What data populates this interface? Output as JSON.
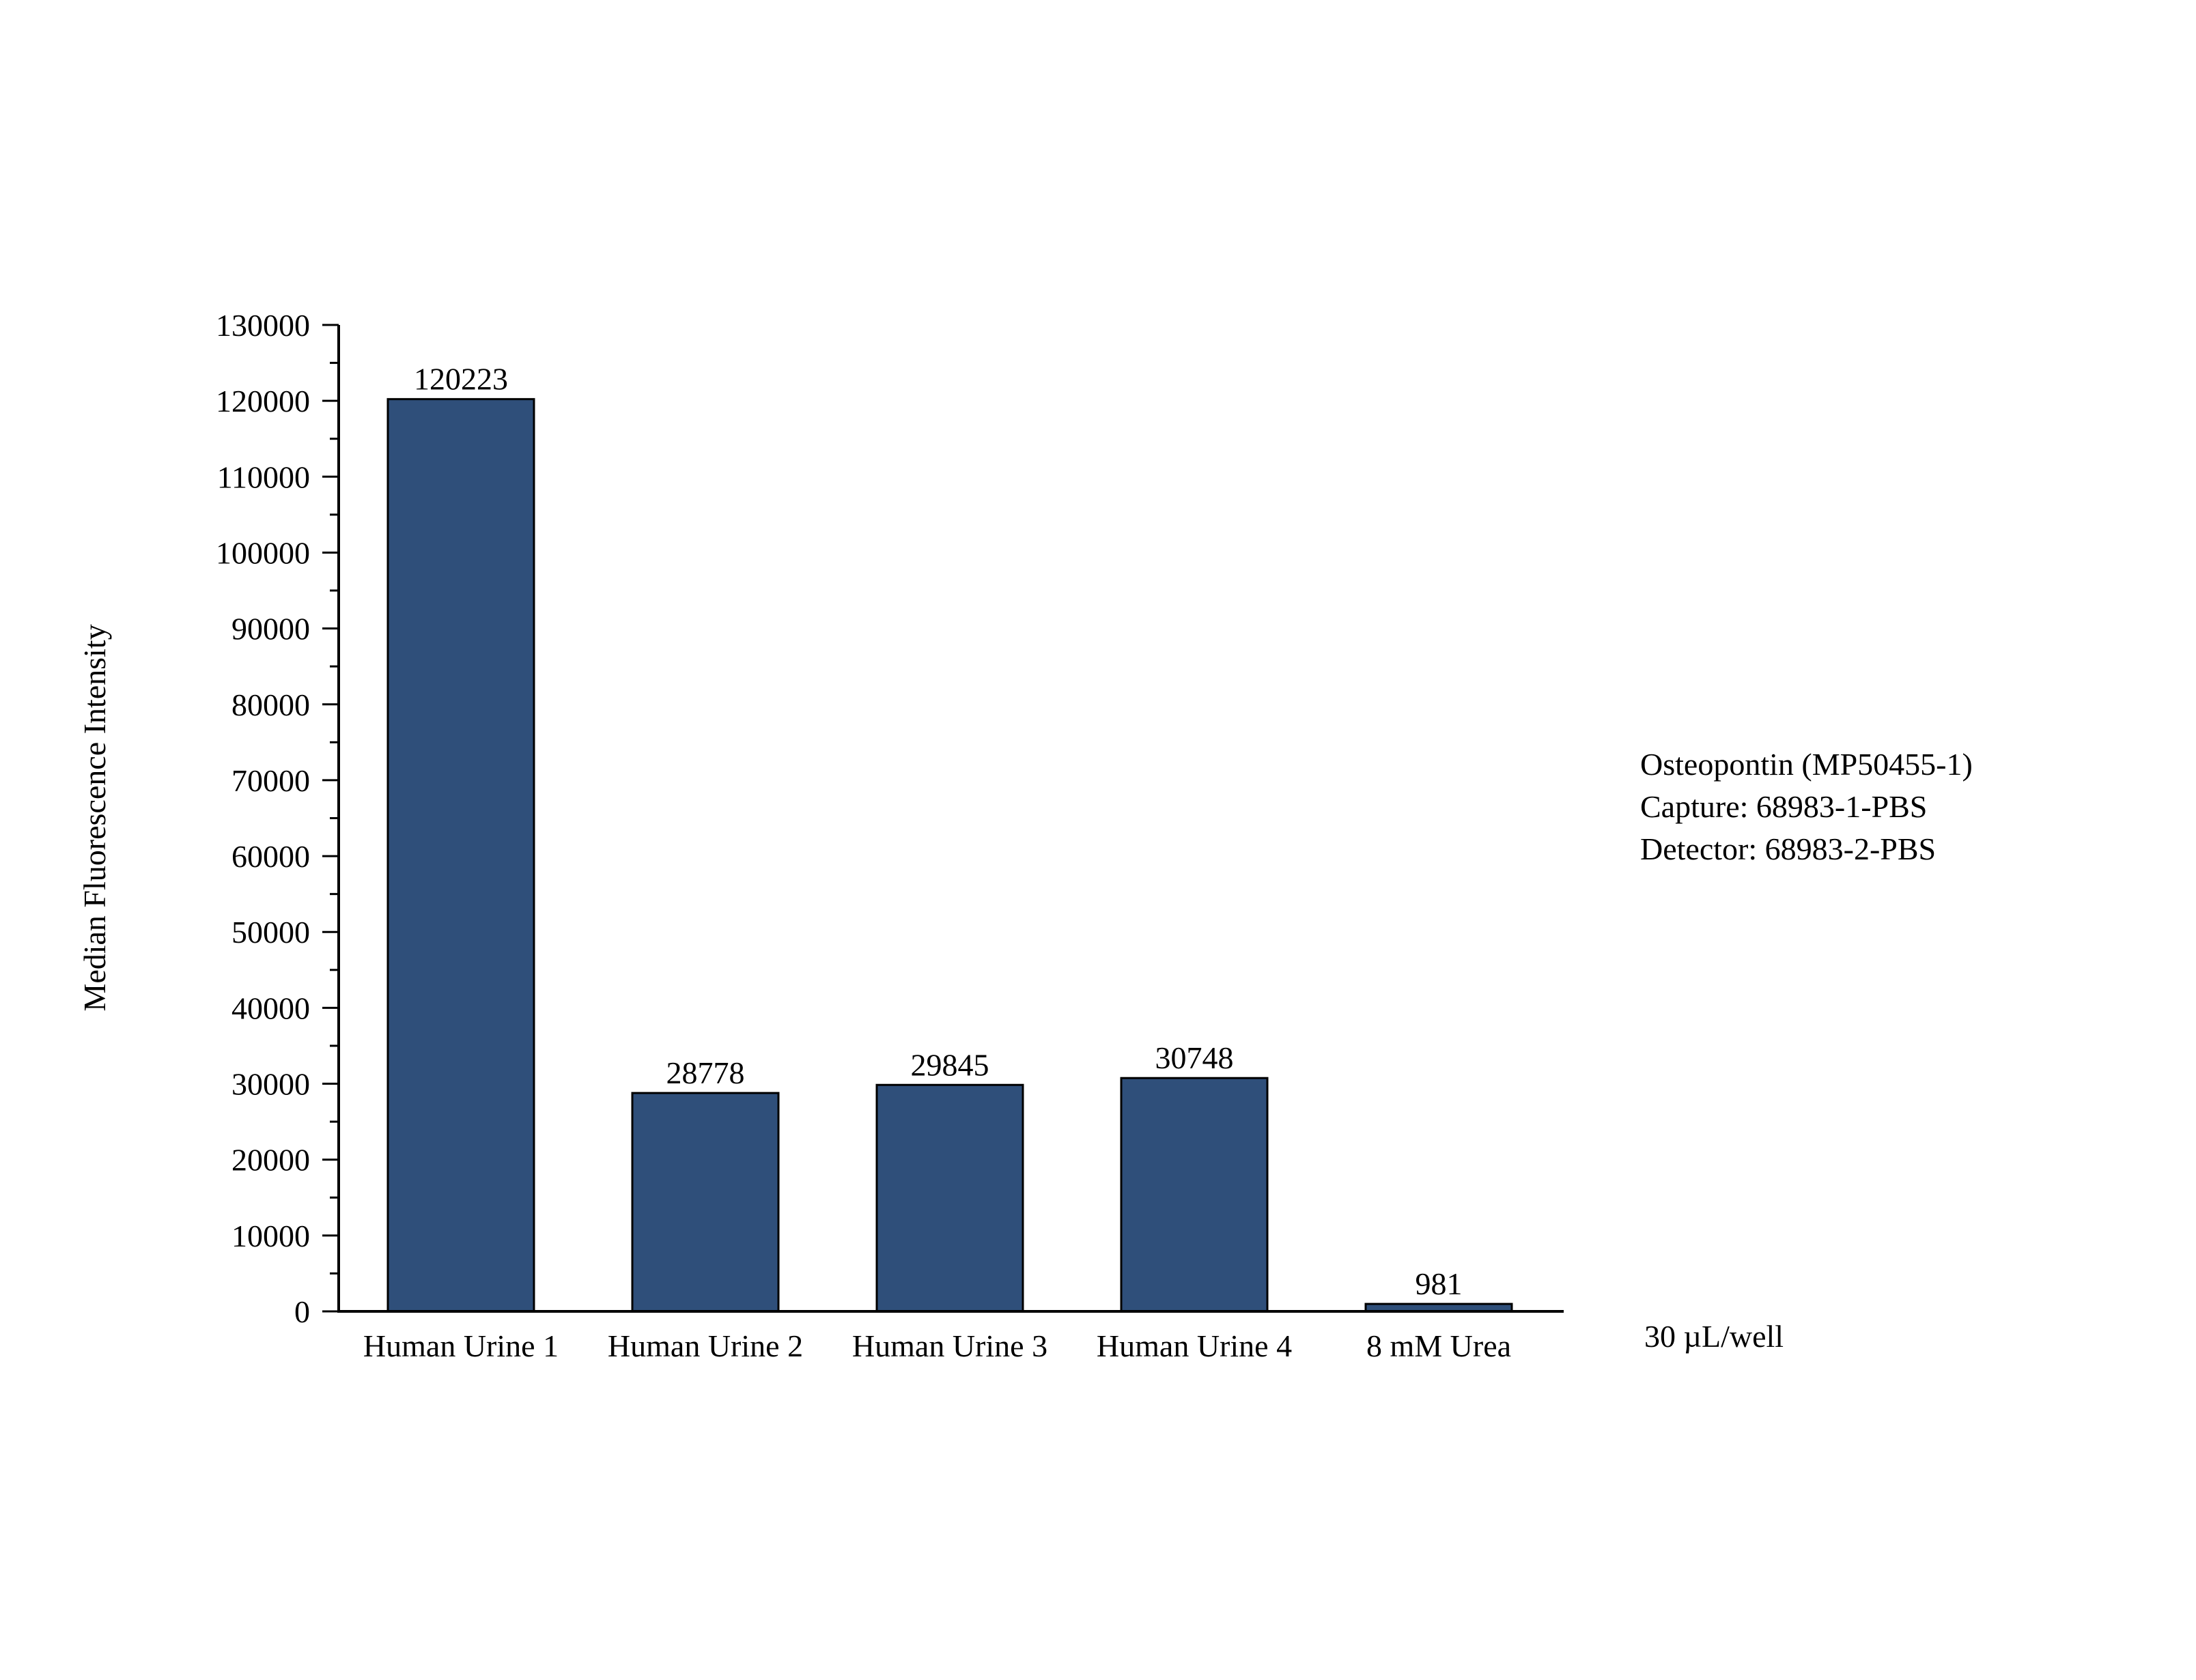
{
  "chart_data": {
    "type": "bar",
    "title": "",
    "xlabel": "",
    "ylabel": "Median Fluorescence Intensity",
    "categories": [
      "Human Urine 1",
      "Human Urine 2",
      "Human Urine 3",
      "Human Urine 4",
      "8 mM Urea"
    ],
    "values": [
      120223,
      28778,
      29845,
      30748,
      981
    ],
    "data_labels": [
      "120223",
      "28778",
      "29845",
      "30748",
      "981"
    ],
    "ylim": [
      0,
      130000
    ],
    "yticks": [
      0,
      10000,
      20000,
      30000,
      40000,
      50000,
      60000,
      70000,
      80000,
      90000,
      100000,
      110000,
      120000,
      130000
    ],
    "ytick_labels": [
      "0",
      "10000",
      "20000",
      "30000",
      "40000",
      "50000",
      "60000",
      "70000",
      "80000",
      "90000",
      "100000",
      "110000",
      "120000",
      "130000"
    ],
    "bar_color": "#2f4f7a",
    "grid": false,
    "legend": "none",
    "annotations": [
      "Osteopontin (MP50455-1)",
      "Capture: 68983-1-PBS",
      "Detector: 68983-2-PBS",
      "30 µL/well"
    ]
  },
  "annotations": {
    "line1": "Osteopontin (MP50455-1)",
    "line2": "Capture: 68983-1-PBS",
    "line3": "Detector: 68983-2-PBS",
    "per_well": "30 µL/well"
  }
}
